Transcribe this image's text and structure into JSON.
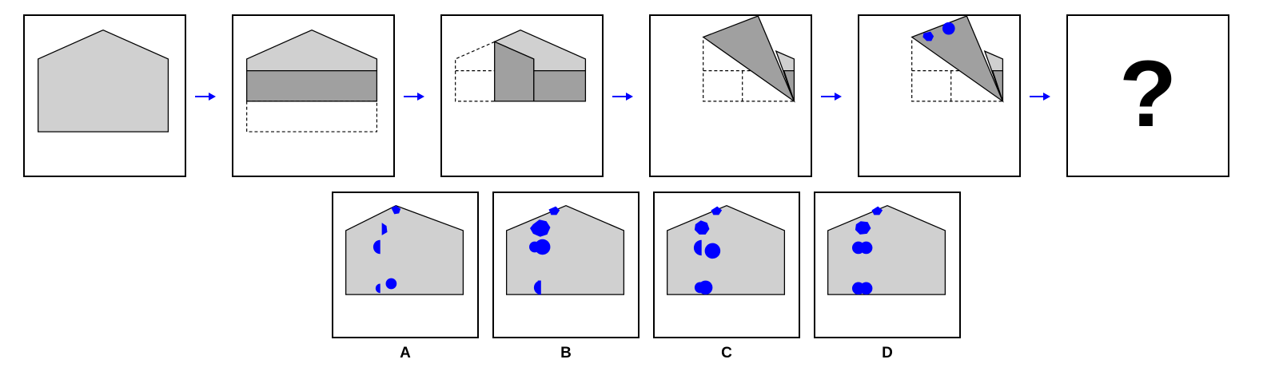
{
  "colors": {
    "paper": "#d0d0d0",
    "paper_dark": "#a0a0a0",
    "hole": "#0000ff",
    "arrow": "#0000ff",
    "outline": "#000000"
  },
  "sequence": {
    "arrow_count": 5,
    "question_mark": "?"
  },
  "options": [
    {
      "label": "A"
    },
    {
      "label": "B"
    },
    {
      "label": "C"
    },
    {
      "label": "D"
    }
  ]
}
